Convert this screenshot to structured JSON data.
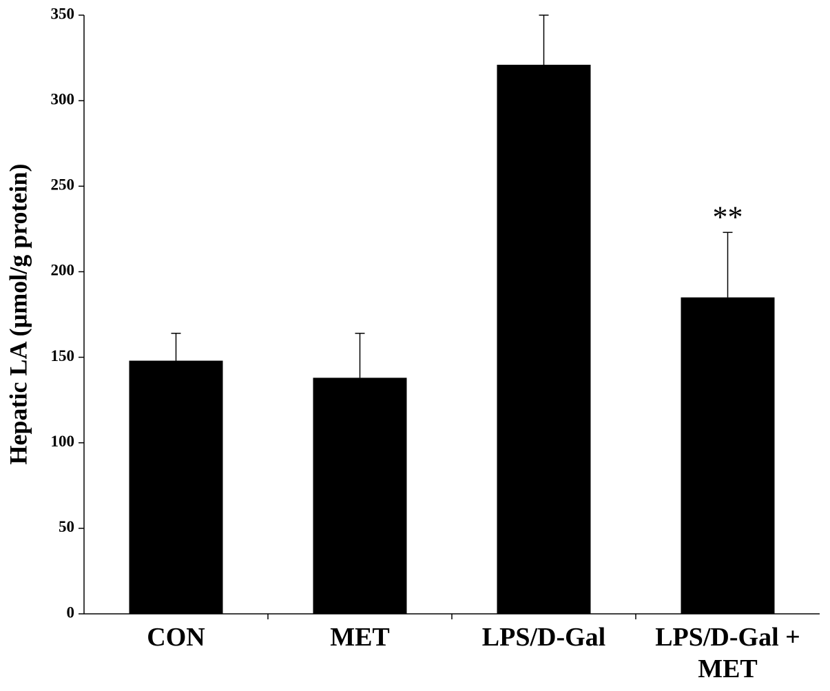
{
  "chart_data": {
    "type": "bar",
    "ylabel": "Hepatic LA  (µmol/g protein)",
    "categories": [
      "CON",
      "MET",
      "LPS/D-Gal",
      "LPS/D-Gal + MET"
    ],
    "values": [
      148,
      138,
      321,
      185
    ],
    "errors": [
      16,
      26,
      29,
      38
    ],
    "color": "#000000",
    "annotations": [
      {
        "text": "**",
        "category": 3
      }
    ],
    "ylim": [
      0,
      350
    ],
    "yticks": [
      0,
      50,
      100,
      150,
      200,
      250,
      300,
      350
    ],
    "grid": false
  }
}
